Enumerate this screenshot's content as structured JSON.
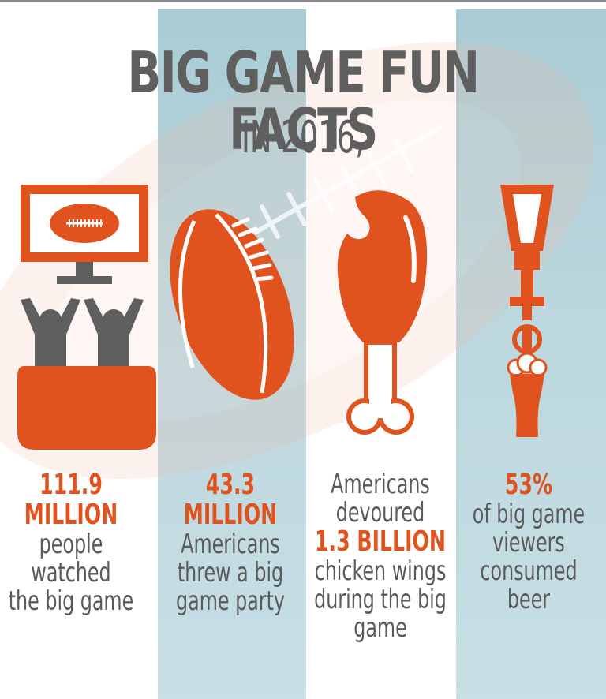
{
  "title": "BIG GAME FUN FACTS",
  "subtitle": "IN 2016,",
  "colors": {
    "accent": "#e0531f",
    "text": "#5f5f60",
    "band": "#b8d5dc",
    "white": "#ffffff"
  },
  "icons": [
    "tv-football-icon",
    "fans-couch-icon",
    "football-icon",
    "chicken-wing-icon",
    "beer-tap-icon"
  ],
  "facts": [
    {
      "highlight": "111.9 MILLION",
      "line1": "people watched",
      "line2": "the big game"
    },
    {
      "highlight": "43.3 MILLION",
      "line1": "Americans",
      "line2": "threw a big",
      "line3": "game party"
    },
    {
      "pre1": "Americans",
      "pre2": "devoured",
      "highlight": "1.3 BILLION",
      "line1": "chicken wings",
      "line2": "during the big",
      "line3": "game"
    },
    {
      "highlight": "53%",
      "line1": "of big game",
      "line2": "viewers",
      "line3": "consumed beer"
    }
  ]
}
